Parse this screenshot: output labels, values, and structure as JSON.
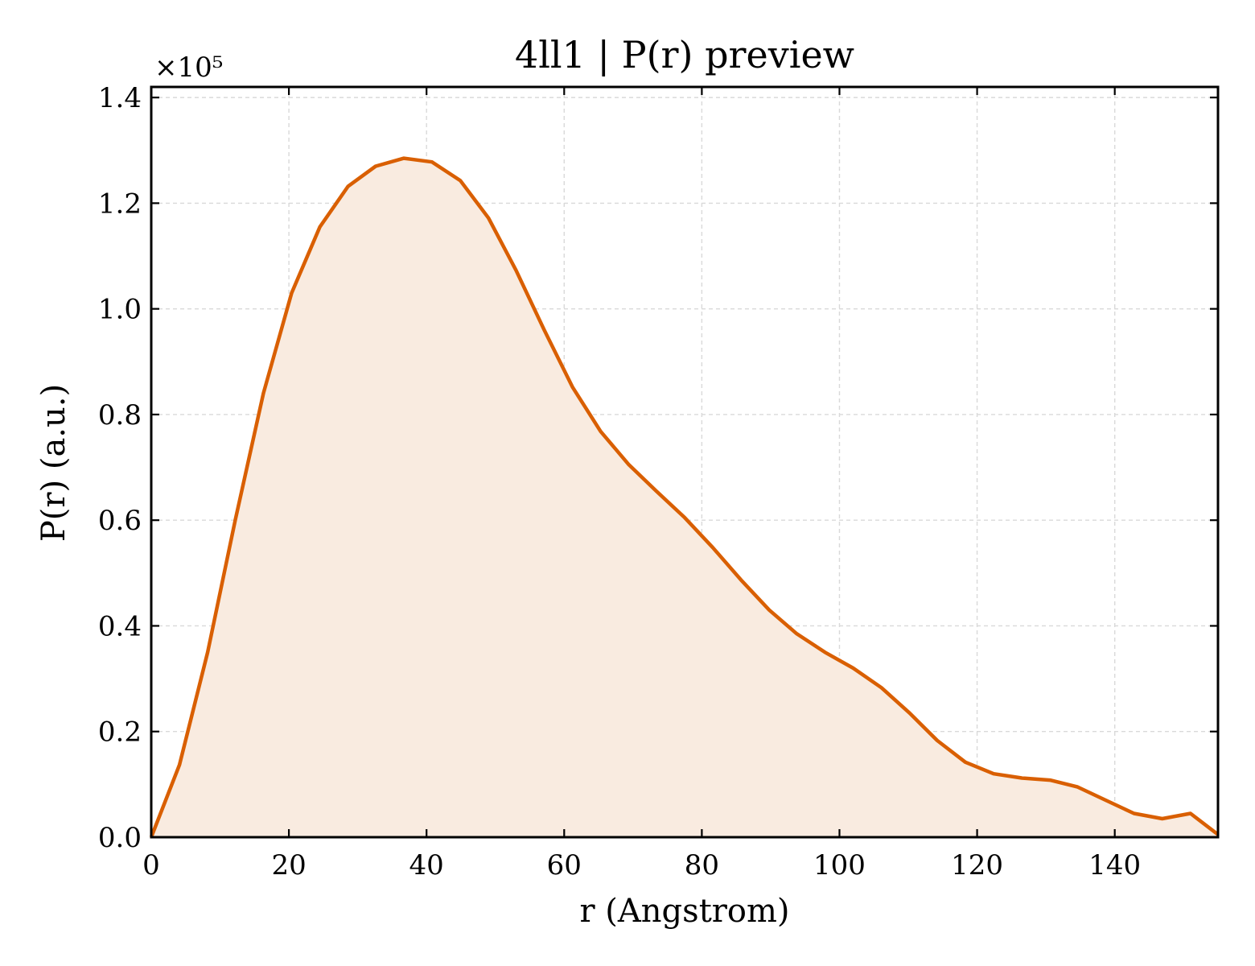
{
  "chart_data": {
    "type": "area",
    "title": "4ll1 | P(r) preview",
    "xlabel": "r (Angstrom)",
    "ylabel": "P(r) (a.u.)",
    "y_offset_label": "×10⁵",
    "y_scale": 100000,
    "xlim": [
      0,
      155
    ],
    "ylim": [
      0,
      1.42
    ],
    "xticks": [
      0,
      20,
      40,
      60,
      80,
      100,
      120,
      140
    ],
    "xtick_labels": [
      "0",
      "20",
      "40",
      "60",
      "80",
      "100",
      "120",
      "140"
    ],
    "yticks": [
      0,
      0.2,
      0.4,
      0.6,
      0.8,
      1.0,
      1.2,
      1.4
    ],
    "ytick_labels": [
      "0.0",
      "0.2",
      "0.4",
      "0.6",
      "0.8",
      "1.0",
      "1.2",
      "1.4"
    ],
    "grid": true,
    "colors": {
      "line": "#d95f02",
      "fill": "#f9ebe0"
    },
    "series": [
      {
        "x": [
          0,
          4.1,
          8.2,
          12.2,
          16.3,
          20.4,
          24.5,
          28.6,
          32.6,
          36.7,
          40.8,
          44.9,
          49.0,
          53.0,
          57.1,
          61.2,
          65.3,
          69.4,
          73.4,
          77.5,
          81.6,
          85.7,
          89.8,
          93.8,
          97.9,
          102.0,
          106.1,
          110.2,
          114.2,
          118.3,
          122.4,
          126.5,
          130.6,
          134.6,
          138.7,
          142.8,
          146.9,
          151.0,
          155.0
        ],
        "y": [
          0.0,
          0.137,
          0.35,
          0.6,
          0.84,
          1.03,
          1.155,
          1.232,
          1.27,
          1.285,
          1.278,
          1.243,
          1.172,
          1.073,
          0.96,
          0.852,
          0.768,
          0.705,
          0.655,
          0.605,
          0.548,
          0.487,
          0.43,
          0.385,
          0.35,
          0.32,
          0.283,
          0.235,
          0.183,
          0.142,
          0.12,
          0.112,
          0.108,
          0.095,
          0.07,
          0.045,
          0.035,
          0.045,
          0.005
        ]
      }
    ]
  }
}
